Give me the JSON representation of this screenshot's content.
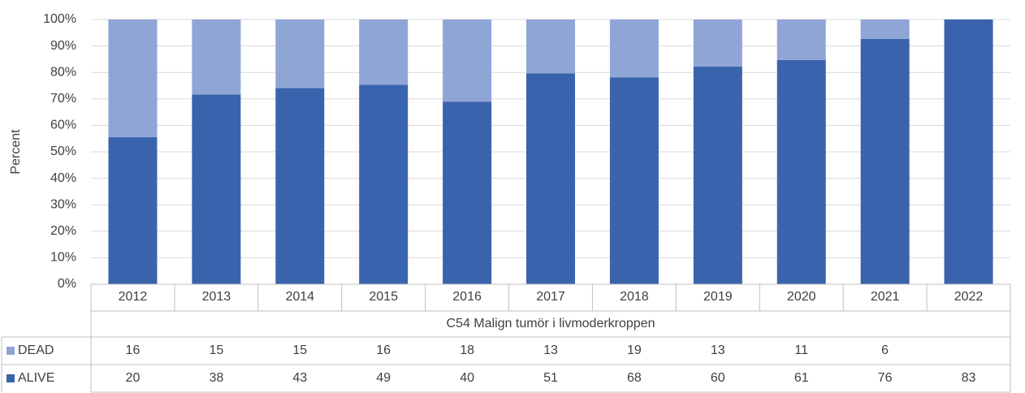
{
  "chart_data": {
    "type": "bar",
    "stacking": "percent",
    "y_label": "Percent",
    "group_label": "C54 Malign tumör i livmoderkroppen",
    "categories": [
      "2012",
      "2013",
      "2014",
      "2015",
      "2016",
      "2017",
      "2018",
      "2019",
      "2020",
      "2021",
      "2022"
    ],
    "series": [
      {
        "name": "ALIVE",
        "color": "#3a63ad",
        "values": [
          20,
          38,
          43,
          49,
          40,
          51,
          68,
          60,
          61,
          76,
          83
        ]
      },
      {
        "name": "DEAD",
        "color": "#8fa5d6",
        "values": [
          16,
          15,
          15,
          16,
          18,
          13,
          19,
          13,
          11,
          6,
          null
        ]
      }
    ],
    "ylim": [
      0,
      100
    ],
    "yticks": [
      {
        "value": 0,
        "label": "0%"
      },
      {
        "value": 10,
        "label": "10%"
      },
      {
        "value": 20,
        "label": "20%"
      },
      {
        "value": 30,
        "label": "30%"
      },
      {
        "value": 40,
        "label": "40%"
      },
      {
        "value": 50,
        "label": "50%"
      },
      {
        "value": 60,
        "label": "60%"
      },
      {
        "value": 70,
        "label": "70%"
      },
      {
        "value": 80,
        "label": "80%"
      },
      {
        "value": 90,
        "label": "90%"
      },
      {
        "value": 100,
        "label": "100%"
      }
    ],
    "grid": true
  }
}
